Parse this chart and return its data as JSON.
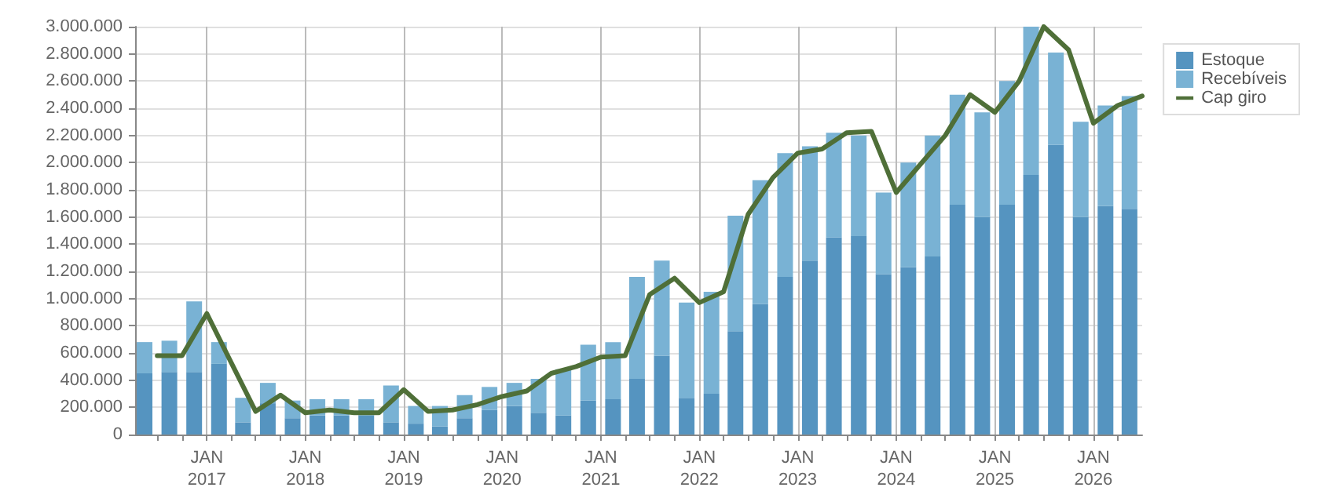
{
  "chart_data": {
    "type": "bar",
    "stacked": true,
    "legend": "top right",
    "grid": true,
    "marker": "none",
    "x": [
      "2016-05-15",
      "2016-08-15",
      "2016-11-15",
      "2017-02-15",
      "2017-05-15",
      "2017-08-15",
      "2017-11-15",
      "2018-02-15",
      "2018-05-15",
      "2018-08-15",
      "2018-11-15",
      "2019-02-15",
      "2019-05-15",
      "2019-08-15",
      "2019-11-15",
      "2020-02-15",
      "2020-05-15",
      "2020-08-15",
      "2020-11-15",
      "2021-02-15",
      "2021-05-15",
      "2021-08-15",
      "2021-11-15",
      "2022-02-15",
      "2022-05-15",
      "2022-08-15",
      "2022-11-15",
      "2023-02-15",
      "2023-05-15",
      "2023-08-15",
      "2023-11-15",
      "2024-02-15",
      "2024-05-15",
      "2024-08-15",
      "2024-11-15",
      "2025-02-15",
      "2025-05-15",
      "2025-08-15",
      "2025-11-15",
      "2026-02-15",
      "2026-05-15"
    ],
    "series": [
      {
        "name": "Estoque",
        "color": "#5594c0",
        "values": [
          450000,
          460000,
          460000,
          520000,
          90000,
          230000,
          120000,
          140000,
          140000,
          140000,
          90000,
          80000,
          60000,
          120000,
          180000,
          210000,
          160000,
          140000,
          250000,
          260000,
          410000,
          580000,
          270000,
          300000,
          760000,
          960000,
          1160000,
          1280000,
          1450000,
          1460000,
          1180000,
          1230000,
          1310000,
          1690000,
          1600000,
          1690000,
          1910000,
          2130000,
          1600000,
          1680000,
          1660000
        ]
      },
      {
        "name": "Recebíveis",
        "color": "#79b2d4",
        "values": [
          230000,
          230000,
          520000,
          160000,
          180000,
          150000,
          130000,
          120000,
          120000,
          120000,
          270000,
          130000,
          150000,
          170000,
          170000,
          170000,
          250000,
          340000,
          410000,
          420000,
          750000,
          700000,
          700000,
          750000,
          850000,
          910000,
          910000,
          840000,
          770000,
          740000,
          600000,
          770000,
          890000,
          810000,
          770000,
          910000,
          1090000,
          680000,
          700000,
          740000,
          830000
        ]
      },
      {
        "name": "Cap giro",
        "type": "line",
        "color": "#4f6f38",
        "line_style": "solid",
        "x": [
          "2016-07-01",
          "2016-10-01",
          "2017-01-01",
          "2017-04-01",
          "2017-07-01",
          "2017-10-01",
          "2018-01-01",
          "2018-04-01",
          "2018-07-01",
          "2018-10-01",
          "2019-01-01",
          "2019-04-01",
          "2019-07-01",
          "2019-10-01",
          "2020-01-01",
          "2020-04-01",
          "2020-07-01",
          "2020-10-01",
          "2021-01-01",
          "2021-04-01",
          "2021-07-01",
          "2021-10-01",
          "2022-01-01",
          "2022-04-01",
          "2022-07-01",
          "2022-10-01",
          "2023-01-01",
          "2023-04-01",
          "2023-07-01",
          "2023-10-01",
          "2024-01-01",
          "2024-04-01",
          "2024-07-01",
          "2024-10-01",
          "2025-01-01",
          "2025-04-01",
          "2025-07-01",
          "2025-10-01",
          "2026-01-01",
          "2026-04-01",
          "2026-07-01"
        ],
        "values": [
          580000,
          580000,
          890000,
          530000,
          170000,
          290000,
          160000,
          180000,
          160000,
          160000,
          330000,
          170000,
          180000,
          220000,
          280000,
          320000,
          450000,
          500000,
          570000,
          580000,
          1030000,
          1150000,
          970000,
          1050000,
          1620000,
          1890000,
          2070000,
          2100000,
          2220000,
          2230000,
          1780000,
          1990000,
          2200000,
          2500000,
          2370000,
          2600000,
          3000000,
          2830000,
          2290000,
          2420000,
          2490000
        ]
      }
    ],
    "xlim": [
      "2016-04-10",
      "2026-07-01"
    ],
    "xticks": [
      {
        "value": "2016-07-01",
        "label": null
      },
      {
        "value": "2016-10-01",
        "label": null
      },
      {
        "value": "2017-01-01",
        "label": "JAN\n2017"
      },
      {
        "value": "2017-04-01",
        "label": null
      },
      {
        "value": "2017-07-01",
        "label": null
      },
      {
        "value": "2017-10-01",
        "label": null
      },
      {
        "value": "2018-01-01",
        "label": "JAN\n2018"
      },
      {
        "value": "2018-04-01",
        "label": null
      },
      {
        "value": "2018-07-01",
        "label": null
      },
      {
        "value": "2018-10-01",
        "label": null
      },
      {
        "value": "2019-01-01",
        "label": "JAN\n2019"
      },
      {
        "value": "2019-04-01",
        "label": null
      },
      {
        "value": "2019-07-01",
        "label": null
      },
      {
        "value": "2019-10-01",
        "label": null
      },
      {
        "value": "2020-01-01",
        "label": "JAN\n2020"
      },
      {
        "value": "2020-04-01",
        "label": null
      },
      {
        "value": "2020-07-01",
        "label": null
      },
      {
        "value": "2020-10-01",
        "label": null
      },
      {
        "value": "2021-01-01",
        "label": "JAN\n2021"
      },
      {
        "value": "2021-04-01",
        "label": null
      },
      {
        "value": "2021-07-01",
        "label": null
      },
      {
        "value": "2021-10-01",
        "label": null
      },
      {
        "value": "2022-01-01",
        "label": "JAN\n2022"
      },
      {
        "value": "2022-04-01",
        "label": null
      },
      {
        "value": "2022-07-01",
        "label": null
      },
      {
        "value": "2022-10-01",
        "label": null
      },
      {
        "value": "2023-01-01",
        "label": "JAN\n2023"
      },
      {
        "value": "2023-04-01",
        "label": null
      },
      {
        "value": "2023-07-01",
        "label": null
      },
      {
        "value": "2023-10-01",
        "label": null
      },
      {
        "value": "2024-01-01",
        "label": "JAN\n2024"
      },
      {
        "value": "2024-04-01",
        "label": null
      },
      {
        "value": "2024-07-01",
        "label": null
      },
      {
        "value": "2024-10-01",
        "label": null
      },
      {
        "value": "2025-01-01",
        "label": "JAN\n2025"
      },
      {
        "value": "2025-04-01",
        "label": null
      },
      {
        "value": "2025-07-01",
        "label": null
      },
      {
        "value": "2025-10-01",
        "label": null
      },
      {
        "value": "2026-01-01",
        "label": "JAN\n2026"
      },
      {
        "value": "2026-04-01",
        "label": null
      }
    ],
    "ylim": [
      0,
      3000000
    ],
    "yticks": [
      {
        "value": 0,
        "label": "0"
      },
      {
        "value": 200000,
        "label": "200.000"
      },
      {
        "value": 400000,
        "label": "400.000"
      },
      {
        "value": 600000,
        "label": "600.000"
      },
      {
        "value": 800000,
        "label": "800.000"
      },
      {
        "value": 1000000,
        "label": "1.000.000"
      },
      {
        "value": 1200000,
        "label": "1.200.000"
      },
      {
        "value": 1400000,
        "label": "1.400.000"
      },
      {
        "value": 1600000,
        "label": "1.600.000"
      },
      {
        "value": 1800000,
        "label": "1.800.000"
      },
      {
        "value": 2000000,
        "label": "2.000.000"
      },
      {
        "value": 2200000,
        "label": "2.200.000"
      },
      {
        "value": 2400000,
        "label": "2.400.000"
      },
      {
        "value": 2600000,
        "label": "2.600.000"
      },
      {
        "value": 2800000,
        "label": "2.800.000"
      },
      {
        "value": 3000000,
        "label": "3.000.000"
      }
    ]
  }
}
